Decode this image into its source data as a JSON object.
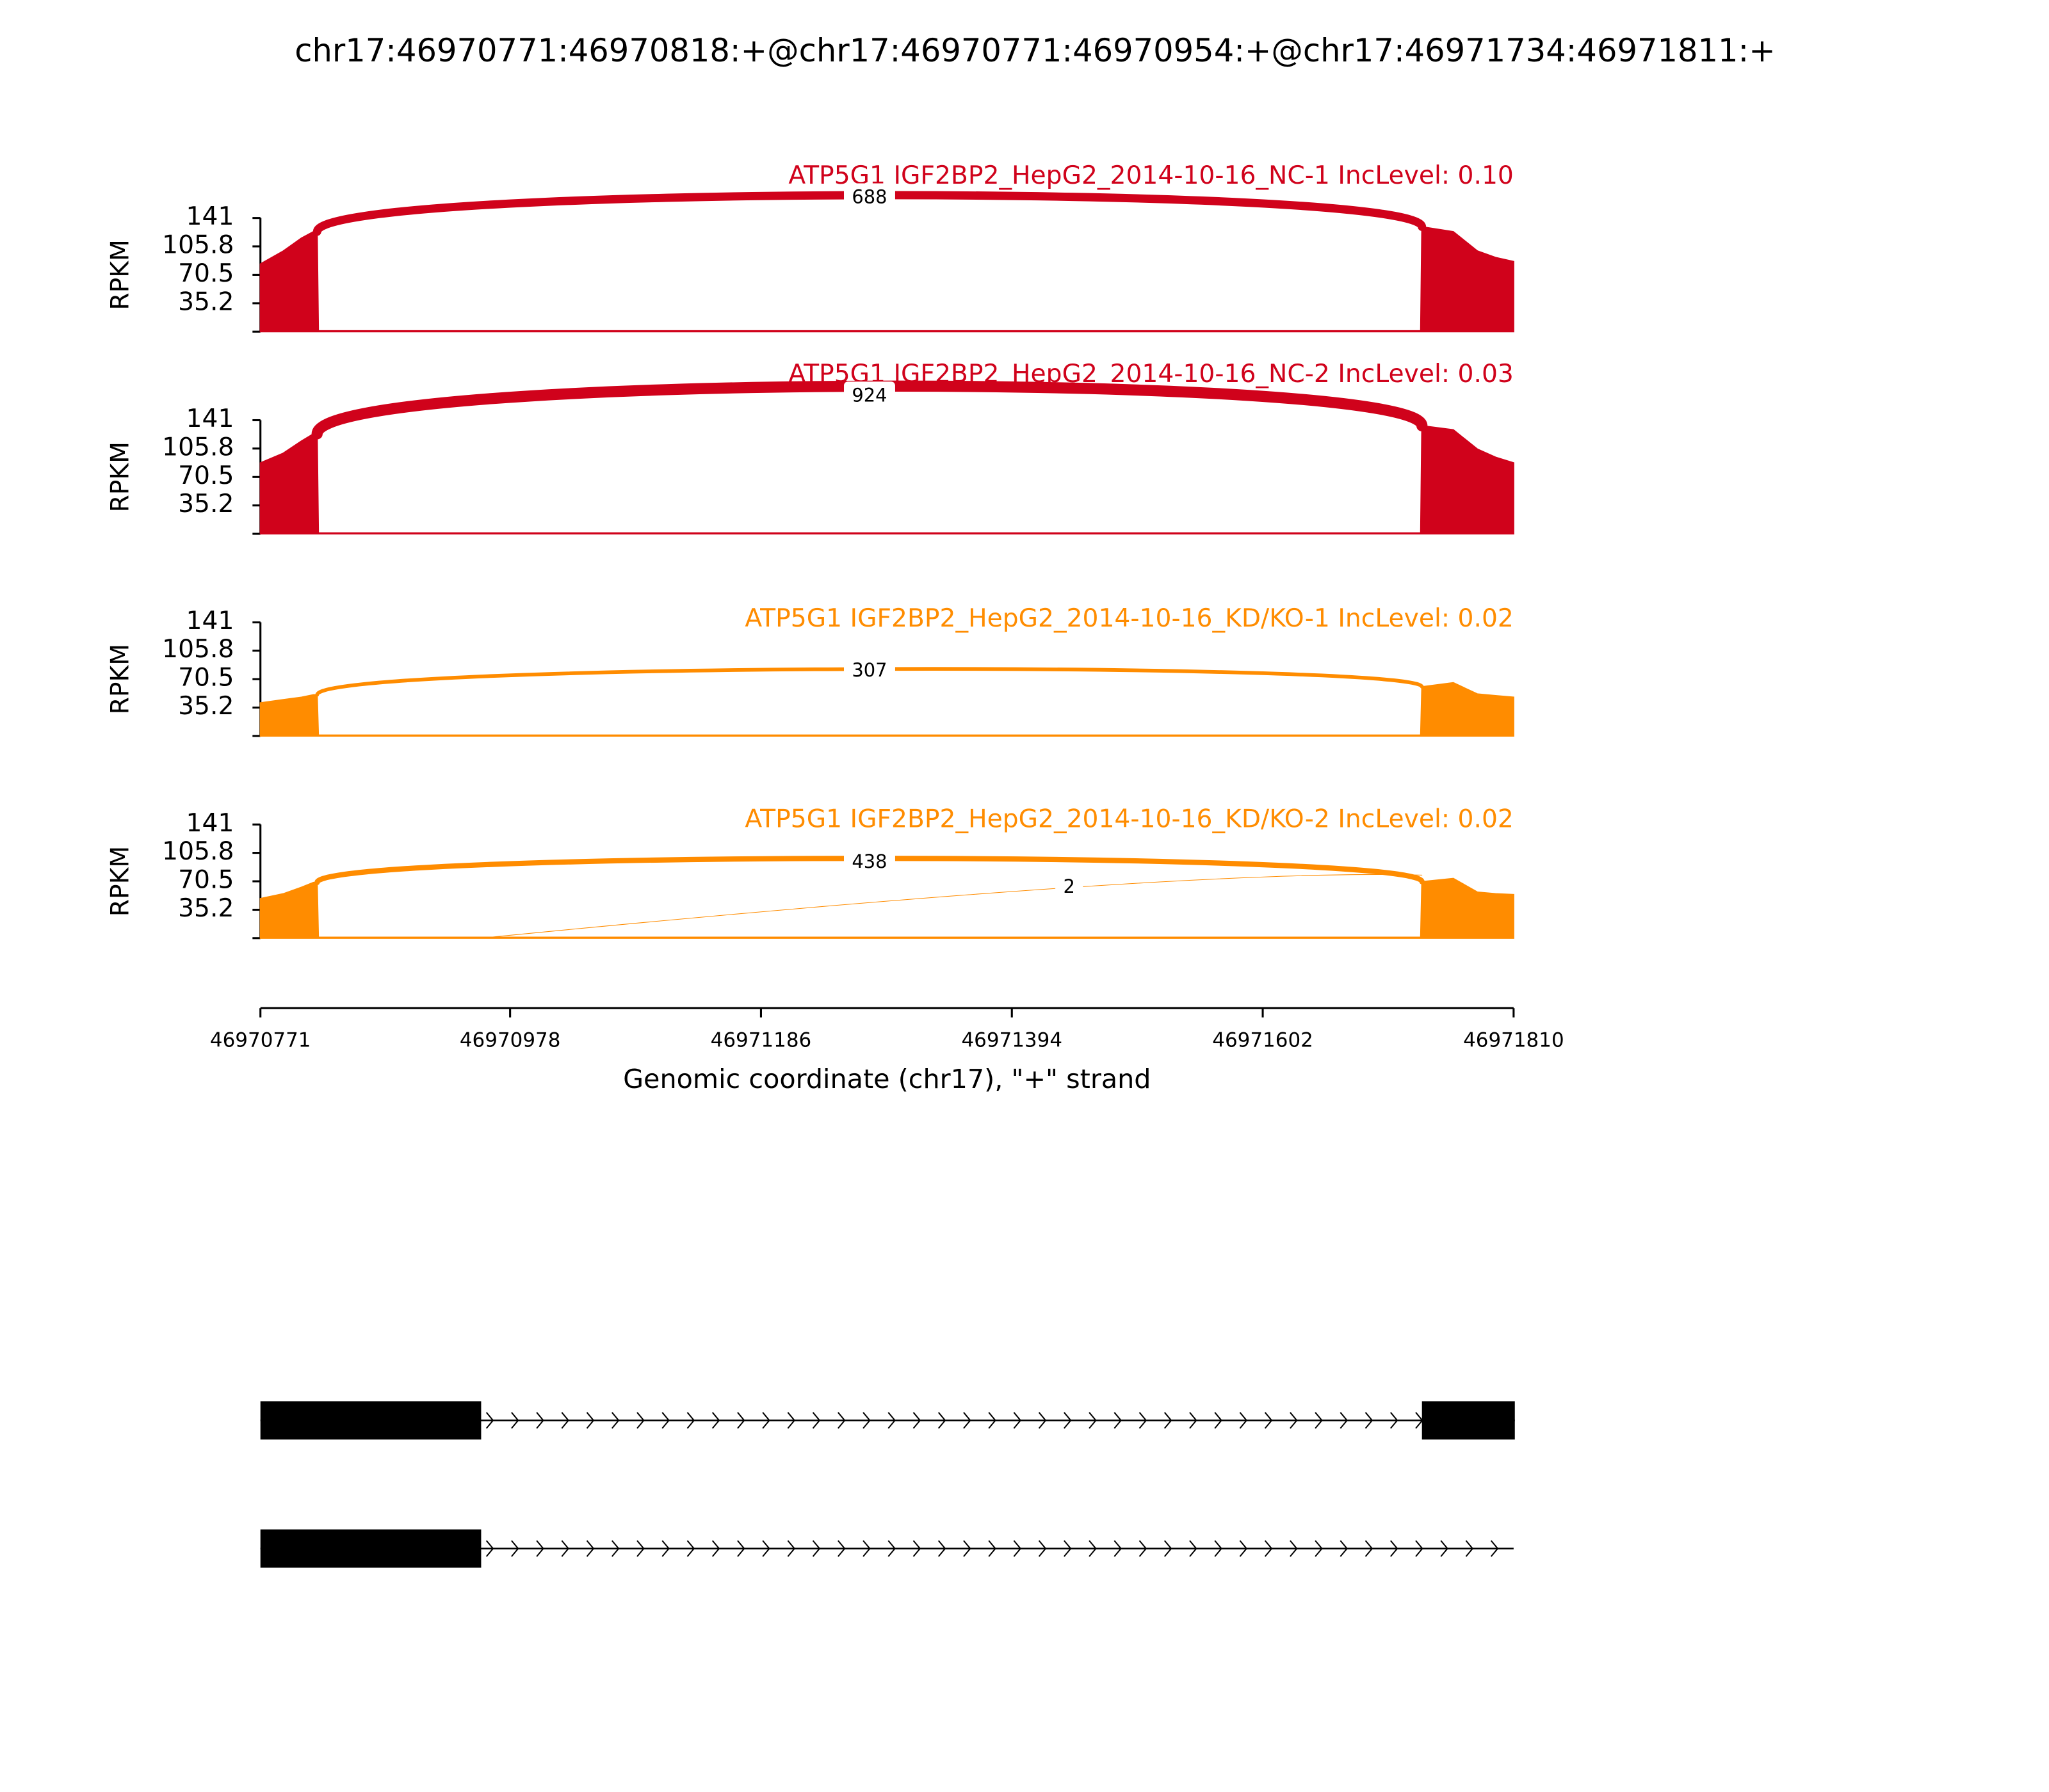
{
  "chart_data": {
    "type": "sashimi",
    "title": "chr17:46970771:46970818:+@chr17:46970771:46970954:+@chr17:46971734:46971811:+",
    "ylabel": "RPKM",
    "ylim": [
      0,
      141
    ],
    "yticks": [
      35.2,
      70.5,
      105.8,
      141
    ],
    "xlim": [
      46970771,
      46971810
    ],
    "xticks": [
      46970771,
      46970978,
      46971186,
      46971394,
      46971602,
      46971810
    ],
    "xlabel": "Genomic coordinate (chr17), \"+\" strand",
    "panels": [
      {
        "title": "ATP5G1 IGF2BP2_HepG2_2014-10-16_NC-1 IncLevel: 0.10",
        "color": "#d0021b",
        "coverage": {
          "x": [
            46970771,
            46970790,
            46970805,
            46970815,
            46970818,
            46970819,
            46971733,
            46971734,
            46971760,
            46971780,
            46971795,
            46971810
          ],
          "values": [
            84,
            100,
            116,
            124,
            124,
            1,
            1,
            130,
            124,
            100,
            92,
            87
          ]
        },
        "junctions": [
          {
            "start": 46970818,
            "end": 46971734,
            "count": 688
          }
        ]
      },
      {
        "title": "ATP5G1 IGF2BP2_HepG2_2014-10-16_NC-2 IncLevel: 0.03",
        "color": "#d0021b",
        "coverage": {
          "x": [
            46970771,
            46970790,
            46970805,
            46970815,
            46970818,
            46970819,
            46971733,
            46971734,
            46971760,
            46971780,
            46971795,
            46971810
          ],
          "values": [
            88,
            100,
            115,
            124,
            124,
            1,
            1,
            134,
            129,
            105,
            95,
            88
          ]
        },
        "junctions": [
          {
            "start": 46970818,
            "end": 46971734,
            "count": 924
          }
        ]
      },
      {
        "title": "ATP5G1 IGF2BP2_HepG2_2014-10-16_KD/KO-1 IncLevel: 0.02",
        "color": "#ff8c00",
        "coverage": {
          "x": [
            46970771,
            46970790,
            46970805,
            46970815,
            46970818,
            46970819,
            46971733,
            46971734,
            46971760,
            46971780,
            46971795,
            46971810
          ],
          "values": [
            41,
            45,
            48,
            51,
            51,
            1,
            1,
            61,
            66,
            52,
            50,
            48
          ]
        },
        "junctions": [
          {
            "start": 46970818,
            "end": 46971734,
            "count": 307
          }
        ]
      },
      {
        "title": "ATP5G1 IGF2BP2_HepG2_2014-10-16_KD/KO-2 IncLevel: 0.02",
        "color": "#ff8c00",
        "coverage": {
          "x": [
            46970771,
            46970790,
            46970805,
            46970815,
            46970818,
            46970819,
            46971733,
            46971734,
            46971760,
            46971780,
            46971795,
            46971810
          ],
          "values": [
            49,
            55,
            63,
            69,
            69,
            1,
            1,
            70,
            74,
            57,
            55,
            54
          ]
        },
        "junctions": [
          {
            "start": 46970818,
            "end": 46971734,
            "count": 438
          },
          {
            "start": 46970954,
            "end": 46971734,
            "count": 2
          }
        ]
      }
    ],
    "transcripts": [
      {
        "start": 46970771,
        "end": 46971811,
        "exons": [
          [
            46970771,
            46970954
          ],
          [
            46971734,
            46971811
          ]
        ]
      },
      {
        "start": 46970771,
        "end": 46971810,
        "exons": [
          [
            46970771,
            46970954
          ]
        ]
      }
    ]
  }
}
